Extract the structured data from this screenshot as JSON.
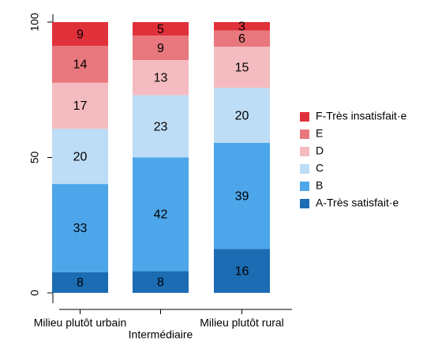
{
  "chart_data": {
    "type": "stacked_bar",
    "categories": [
      "Milieu plutôt urbain",
      "Intermédiaire",
      "Milieu plutôt rural"
    ],
    "series": [
      {
        "name": "A-Très satisfait·e",
        "color": "#1c6cb4",
        "values": [
          7.6,
          8,
          16.2
        ],
        "value_labels": [
          "8",
          "8",
          "16"
        ]
      },
      {
        "name": "B",
        "color": "#4da6e9",
        "values": [
          32.6,
          42,
          39.2
        ],
        "value_labels": [
          "33",
          "42",
          "39"
        ]
      },
      {
        "name": "C",
        "color": "#bddcf5",
        "values": [
          20.4,
          23,
          20.3
        ],
        "value_labels": [
          "20",
          "23",
          "20"
        ]
      },
      {
        "name": "D",
        "color": "#f4bcc0",
        "values": [
          17.0,
          13,
          15.2
        ],
        "value_labels": [
          "17",
          "13",
          "15"
        ]
      },
      {
        "name": "E",
        "color": "#e8787d",
        "values": [
          13.6,
          9,
          6.0
        ],
        "value_labels": [
          "14",
          "9",
          "6"
        ]
      },
      {
        "name": "F-Très insatisfait·e",
        "color": "#e0313b",
        "values": [
          8.8,
          5,
          3.1
        ],
        "value_labels": [
          "9",
          "5",
          "3"
        ]
      }
    ],
    "ylim": [
      0,
      100
    ],
    "yticks": [
      0,
      50,
      100
    ],
    "legend": "right"
  }
}
